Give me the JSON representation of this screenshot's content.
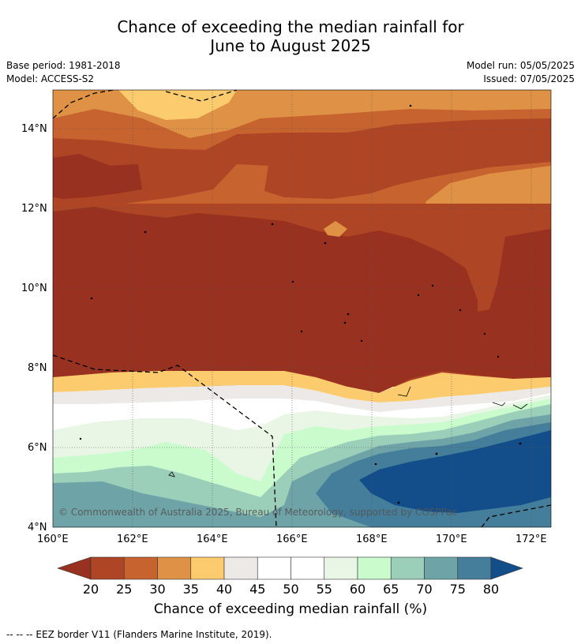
{
  "header": {
    "title_line1": "Chance of exceeding the median rainfall for",
    "title_line2": "June to August 2025",
    "base_period": "Base period: 1981-2018",
    "model": "Model: ACCESS-S2",
    "model_run": "Model run: 05/05/2025",
    "issued": "Issued: 07/05/2025"
  },
  "map": {
    "lat_labels": [
      "14°N",
      "12°N",
      "10°N",
      "8°N",
      "6°N",
      "4°N"
    ],
    "lon_labels": [
      "160°E",
      "162°E",
      "164°E",
      "166°E",
      "168°E",
      "170°E",
      "172°E"
    ],
    "lat_range": [
      4,
      15
    ],
    "lon_range": [
      160,
      172.5
    ],
    "copyright": "© Commonwealth of Australia 2025, Bureau of Meteorology, supported by COSPPac",
    "palette": [
      "#98311f",
      "#ae4525",
      "#c7632f",
      "#df9145",
      "#fccb6d",
      "#ede9e6",
      "#ffffff",
      "#ffffff",
      "#e9f6e6",
      "#c9fbcd",
      "#9ccfb9",
      "#6ea4a8",
      "#447e9b",
      "#134e8b"
    ]
  },
  "colorbar": {
    "ticks": [
      "20",
      "25",
      "30",
      "35",
      "40",
      "45",
      "50",
      "55",
      "60",
      "65",
      "70",
      "75",
      "80"
    ],
    "colors": [
      "#ae4525",
      "#c7632f",
      "#df9145",
      "#fccb6d",
      "#ede9e6",
      "#ffffff",
      "#ffffff",
      "#e9f6e6",
      "#c9fbcd",
      "#9ccfb9",
      "#6ea4a8",
      "#447e9b"
    ],
    "low_color": "#98311f",
    "high_color": "#134e8b",
    "label": "Chance of exceeding median rainfall (%)"
  },
  "footnote": "--  --  -- EEZ border V11 (Flanders Marine Institute, 2019)."
}
